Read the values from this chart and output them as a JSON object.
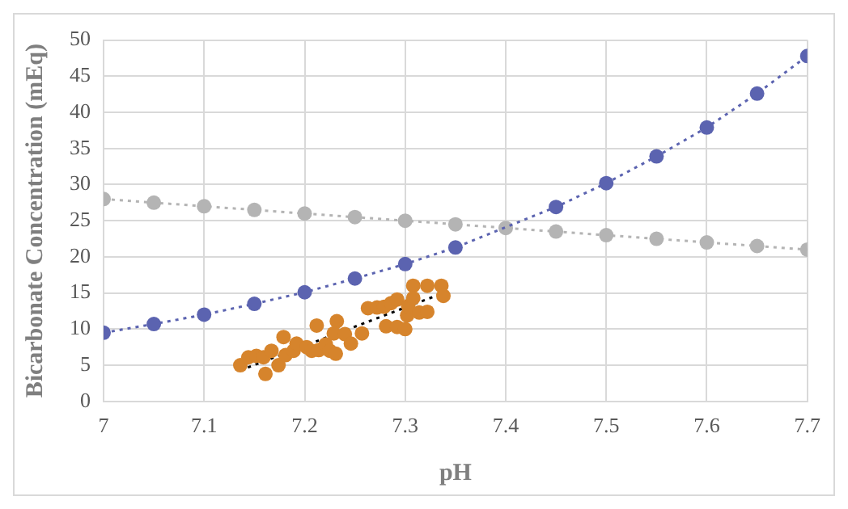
{
  "chart_data": {
    "type": "line",
    "xlabel": "pH",
    "ylabel": "Bicarbonate Concentration (mEq)",
    "xlim": [
      7,
      7.7
    ],
    "ylim": [
      0,
      50
    ],
    "xticks": [
      7,
      7.1,
      7.2,
      7.3,
      7.4,
      7.5,
      7.6,
      7.7
    ],
    "yticks": [
      0,
      5,
      10,
      15,
      20,
      25,
      30,
      35,
      40,
      45,
      50
    ],
    "grid": true,
    "legend": false,
    "series": [
      {
        "type": "line",
        "color": "#5b63b0",
        "marker": "circle",
        "line_style": "dotted",
        "x": [
          7,
          7.05,
          7.1,
          7.15,
          7.2,
          7.25,
          7.3,
          7.35,
          7.4,
          7.45,
          7.5,
          7.55,
          7.6,
          7.65,
          7.7
        ],
        "values": [
          9.5,
          10.7,
          12,
          13.5,
          15.1,
          17,
          19,
          21.3,
          null,
          26.9,
          30.2,
          33.9,
          37.9,
          42.6,
          47.8
        ]
      },
      {
        "type": "line",
        "color": "#b4b4b4",
        "marker": "circle",
        "line_style": "dotted",
        "x": [
          7,
          7.05,
          7.1,
          7.15,
          7.2,
          7.25,
          7.3,
          7.35,
          7.4,
          7.45,
          7.5,
          7.55,
          7.6,
          7.65,
          7.7
        ],
        "values": [
          28,
          27.5,
          27,
          26.5,
          26,
          25.5,
          25,
          24.5,
          24,
          23.5,
          23,
          22.5,
          22,
          21.5,
          21
        ]
      },
      {
        "type": "scatter",
        "color": "#d6842c",
        "marker": "circle",
        "x": [
          7.136,
          7.144,
          7.152,
          7.159,
          7.161,
          7.167,
          7.174,
          7.179,
          7.181,
          7.189,
          7.192,
          7.202,
          7.207,
          7.212,
          7.214,
          7.221,
          7.225,
          7.231,
          7.232,
          7.229,
          7.24,
          7.246,
          7.257,
          7.263,
          7.272,
          7.279,
          7.281,
          7.286,
          7.292,
          7.292,
          7.3,
          7.302,
          7.303,
          7.308,
          7.308,
          7.314,
          7.322,
          7.322,
          7.336,
          7.338
        ],
        "values": [
          5,
          6.1,
          6.3,
          6.1,
          3.8,
          7,
          5,
          8.9,
          6.4,
          7,
          8,
          7.5,
          7,
          10.5,
          7.1,
          7.9,
          7,
          6.6,
          11.1,
          9.4,
          9.3,
          8,
          9.4,
          12.9,
          13,
          13.1,
          10.4,
          13.6,
          14.1,
          10.3,
          10,
          11.9,
          13.2,
          16,
          14.3,
          12.3,
          12.4,
          16,
          16,
          14.6
        ]
      },
      {
        "type": "line",
        "color": "#000000",
        "marker": "none",
        "line_style": "dotted",
        "x": [
          7.136,
          7.338
        ],
        "values": [
          4.3,
          15
        ]
      }
    ]
  }
}
